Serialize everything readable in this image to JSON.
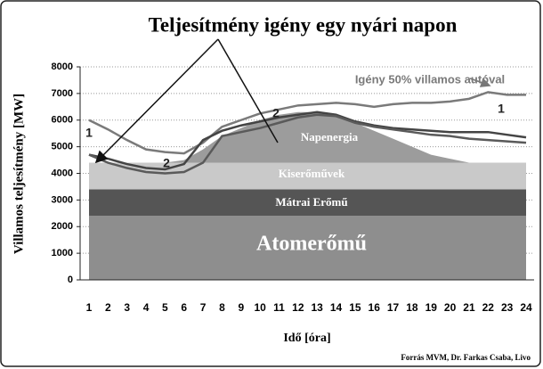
{
  "chart_data": {
    "type": "area",
    "title": "Teljesítmény igény egy nyári napon",
    "ylabel": "Villamos teljesítmény [MW]",
    "xlabel": "Idő [óra]",
    "source": "Forrás MVM, Dr. Farkas Csaba, Livo",
    "categories": [
      "1",
      "2",
      "3",
      "4",
      "5",
      "6",
      "7",
      "8",
      "9",
      "10",
      "11",
      "12",
      "13",
      "14",
      "15",
      "16",
      "17",
      "18",
      "19",
      "20",
      "21",
      "22",
      "23",
      "24"
    ],
    "ylim": [
      0,
      8000
    ],
    "yticks": [
      0,
      1000,
      2000,
      3000,
      4000,
      5000,
      6000,
      7000,
      8000
    ],
    "grid": true,
    "series": [
      {
        "name": "Atomerőmű",
        "kind": "stacked-area",
        "color": "#8e8e8e",
        "values": [
          2400,
          2400,
          2400,
          2400,
          2400,
          2400,
          2400,
          2400,
          2400,
          2400,
          2400,
          2400,
          2400,
          2400,
          2400,
          2400,
          2400,
          2400,
          2400,
          2400,
          2400,
          2400,
          2400,
          2400
        ]
      },
      {
        "name": "Mátrai Erőmű",
        "kind": "stacked-area",
        "color": "#555555",
        "values": [
          1000,
          1000,
          1000,
          1000,
          1000,
          1000,
          1000,
          1000,
          1000,
          1000,
          1000,
          1000,
          1000,
          1000,
          1000,
          1000,
          1000,
          1000,
          1000,
          1000,
          1000,
          1000,
          1000,
          1000
        ]
      },
      {
        "name": "Kiserőművek",
        "kind": "stacked-area",
        "color": "#c9c9c9",
        "values": [
          1000,
          1000,
          1000,
          1000,
          1000,
          1000,
          1000,
          1000,
          1000,
          1000,
          1000,
          1000,
          1000,
          1000,
          1000,
          1000,
          1000,
          1000,
          1000,
          1000,
          1000,
          1000,
          1000,
          1000
        ]
      },
      {
        "name": "Napenergia",
        "kind": "stacked-area",
        "color": "#9c9c9c",
        "values": [
          0,
          0,
          0,
          0,
          0,
          100,
          500,
          1000,
          1300,
          1600,
          1800,
          1900,
          1900,
          1800,
          1500,
          1200,
          900,
          600,
          300,
          150,
          0,
          0,
          0,
          0
        ]
      },
      {
        "name": "Igény 50% villamos autóval",
        "kind": "line",
        "color": "#7a7a7a",
        "values": [
          6000,
          5650,
          5250,
          4900,
          4800,
          4750,
          5150,
          5750,
          6000,
          6250,
          6400,
          6550,
          6600,
          6650,
          6600,
          6500,
          6600,
          6650,
          6650,
          6700,
          6800,
          7050,
          6950,
          6950
        ]
      },
      {
        "name": "1",
        "kind": "line",
        "color": "#444444",
        "values": [
          4700,
          4550,
          4350,
          4200,
          4150,
          4350,
          5250,
          5600,
          5800,
          5950,
          6100,
          6200,
          6300,
          6200,
          5950,
          5800,
          5700,
          5650,
          5600,
          5550,
          5550,
          5550,
          5450,
          5350
        ]
      },
      {
        "name": "2",
        "kind": "line",
        "color": "#5a5a5a",
        "values": [
          4700,
          4400,
          4200,
          4050,
          4000,
          4050,
          4400,
          5400,
          5550,
          5700,
          5900,
          6100,
          6200,
          6150,
          5900,
          5750,
          5650,
          5550,
          5450,
          5400,
          5300,
          5250,
          5200,
          5150
        ]
      }
    ]
  }
}
